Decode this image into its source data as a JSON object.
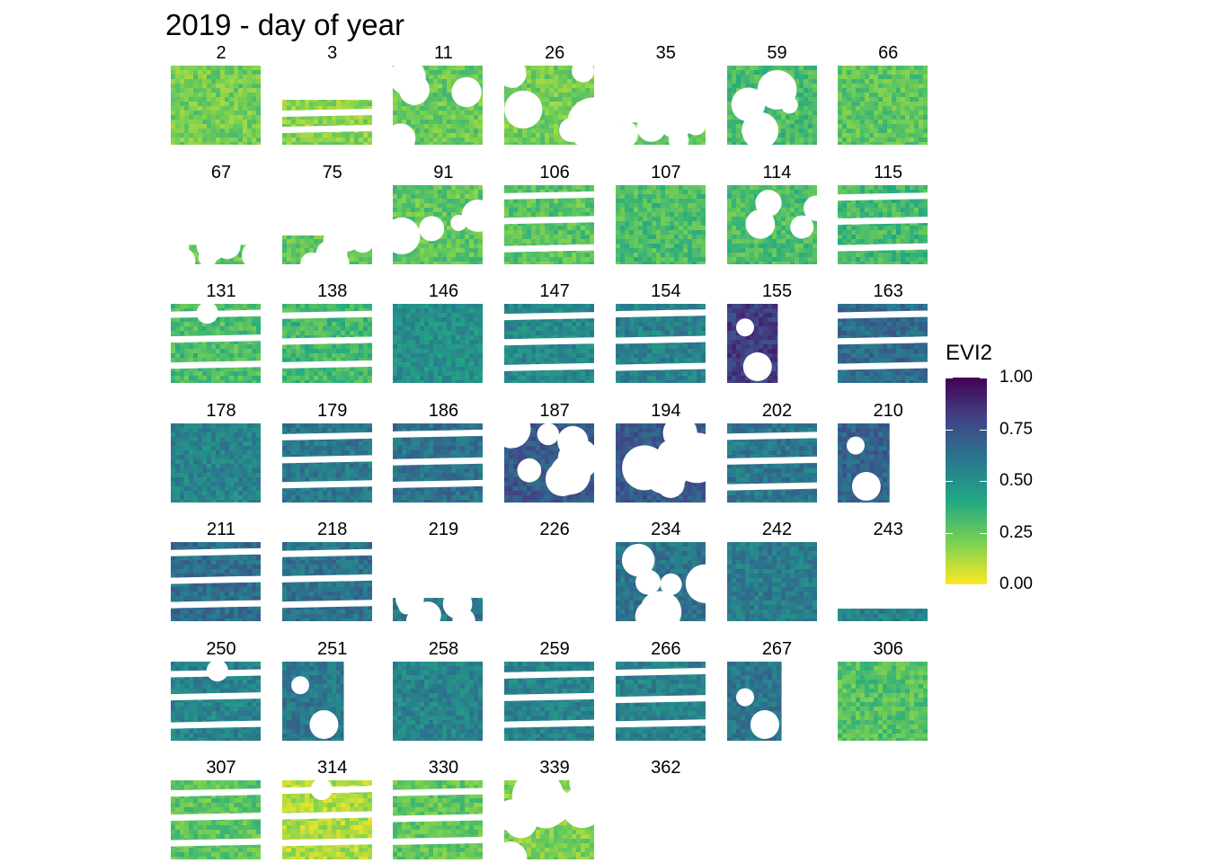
{
  "chart_data": {
    "type": "heatmap",
    "title": "2019 - day of year",
    "colorbar": {
      "label": "EVI2",
      "range": [
        0,
        1
      ],
      "ticks": [
        "0.00",
        "0.25",
        "0.50",
        "0.75",
        "1.00"
      ],
      "palette": [
        "#fde725",
        "#7ad151",
        "#22a884",
        "#2a788e",
        "#414487",
        "#440154"
      ]
    },
    "panels": [
      {
        "label": "2",
        "mean_evi2": 0.22,
        "coverage": 0.97,
        "pattern": "full"
      },
      {
        "label": "3",
        "mean_evi2": 0.18,
        "coverage": 0.35,
        "pattern": "bottom-strips"
      },
      {
        "label": "11",
        "mean_evi2": 0.24,
        "coverage": 0.85,
        "pattern": "clouds"
      },
      {
        "label": "26",
        "mean_evi2": 0.22,
        "coverage": 0.45,
        "pattern": "heavy-clouds"
      },
      {
        "label": "35",
        "mean_evi2": 0.25,
        "coverage": 0.03,
        "pattern": "mostly-empty"
      },
      {
        "label": "59",
        "mean_evi2": 0.3,
        "coverage": 0.7,
        "pattern": "clouds"
      },
      {
        "label": "66",
        "mean_evi2": 0.26,
        "coverage": 0.9,
        "pattern": "full"
      },
      {
        "label": "67",
        "mean_evi2": 0.25,
        "coverage": 0.06,
        "pattern": "mostly-empty"
      },
      {
        "label": "75",
        "mean_evi2": 0.25,
        "coverage": 0.02,
        "pattern": "mostly-empty"
      },
      {
        "label": "91",
        "mean_evi2": 0.26,
        "coverage": 0.7,
        "pattern": "clouds"
      },
      {
        "label": "106",
        "mean_evi2": 0.27,
        "coverage": 0.8,
        "pattern": "striped"
      },
      {
        "label": "107",
        "mean_evi2": 0.3,
        "coverage": 1.0,
        "pattern": "full"
      },
      {
        "label": "114",
        "mean_evi2": 0.3,
        "coverage": 0.8,
        "pattern": "clouds"
      },
      {
        "label": "115",
        "mean_evi2": 0.32,
        "coverage": 0.8,
        "pattern": "striped"
      },
      {
        "label": "131",
        "mean_evi2": 0.3,
        "coverage": 0.7,
        "pattern": "striped"
      },
      {
        "label": "138",
        "mean_evi2": 0.32,
        "coverage": 0.8,
        "pattern": "striped"
      },
      {
        "label": "146",
        "mean_evi2": 0.5,
        "coverage": 1.0,
        "pattern": "full"
      },
      {
        "label": "147",
        "mean_evi2": 0.52,
        "coverage": 0.8,
        "pattern": "striped"
      },
      {
        "label": "154",
        "mean_evi2": 0.56,
        "coverage": 0.8,
        "pattern": "striped"
      },
      {
        "label": "155",
        "mean_evi2": 0.82,
        "coverage": 0.45,
        "pattern": "partial"
      },
      {
        "label": "163",
        "mean_evi2": 0.65,
        "coverage": 0.8,
        "pattern": "striped"
      },
      {
        "label": "178",
        "mean_evi2": 0.55,
        "coverage": 0.95,
        "pattern": "full"
      },
      {
        "label": "179",
        "mean_evi2": 0.6,
        "coverage": 0.8,
        "pattern": "striped"
      },
      {
        "label": "186",
        "mean_evi2": 0.62,
        "coverage": 0.8,
        "pattern": "striped"
      },
      {
        "label": "187",
        "mean_evi2": 0.72,
        "coverage": 0.35,
        "pattern": "heavy-clouds"
      },
      {
        "label": "194",
        "mean_evi2": 0.72,
        "coverage": 0.6,
        "pattern": "heavy-clouds"
      },
      {
        "label": "202",
        "mean_evi2": 0.6,
        "coverage": 0.8,
        "pattern": "striped"
      },
      {
        "label": "210",
        "mean_evi2": 0.68,
        "coverage": 0.45,
        "pattern": "partial"
      },
      {
        "label": "211",
        "mean_evi2": 0.64,
        "coverage": 0.8,
        "pattern": "striped"
      },
      {
        "label": "218",
        "mean_evi2": 0.62,
        "coverage": 0.8,
        "pattern": "striped"
      },
      {
        "label": "219",
        "mean_evi2": 0.6,
        "coverage": 0.12,
        "pattern": "mostly-empty"
      },
      {
        "label": "226",
        "mean_evi2": 0.6,
        "coverage": 0.01,
        "pattern": "empty"
      },
      {
        "label": "234",
        "mean_evi2": 0.62,
        "coverage": 0.5,
        "pattern": "heavy-clouds"
      },
      {
        "label": "242",
        "mean_evi2": 0.58,
        "coverage": 1.0,
        "pattern": "full"
      },
      {
        "label": "243",
        "mean_evi2": 0.55,
        "coverage": 0.12,
        "pattern": "bottom-strip"
      },
      {
        "label": "250",
        "mean_evi2": 0.55,
        "coverage": 0.7,
        "pattern": "striped"
      },
      {
        "label": "251",
        "mean_evi2": 0.6,
        "coverage": 0.3,
        "pattern": "partial"
      },
      {
        "label": "258",
        "mean_evi2": 0.55,
        "coverage": 1.0,
        "pattern": "full"
      },
      {
        "label": "259",
        "mean_evi2": 0.55,
        "coverage": 0.8,
        "pattern": "striped"
      },
      {
        "label": "266",
        "mean_evi2": 0.56,
        "coverage": 0.8,
        "pattern": "striped"
      },
      {
        "label": "267",
        "mean_evi2": 0.6,
        "coverage": 0.4,
        "pattern": "partial"
      },
      {
        "label": "306",
        "mean_evi2": 0.28,
        "coverage": 1.0,
        "pattern": "full"
      },
      {
        "label": "307",
        "mean_evi2": 0.27,
        "coverage": 0.8,
        "pattern": "striped"
      },
      {
        "label": "314",
        "mean_evi2": 0.12,
        "coverage": 0.75,
        "pattern": "striped"
      },
      {
        "label": "330",
        "mean_evi2": 0.26,
        "coverage": 0.8,
        "pattern": "striped"
      },
      {
        "label": "339",
        "mean_evi2": 0.2,
        "coverage": 0.3,
        "pattern": "heavy-clouds"
      },
      {
        "label": "362",
        "mean_evi2": 0.2,
        "coverage": 0.01,
        "pattern": "empty"
      }
    ]
  }
}
